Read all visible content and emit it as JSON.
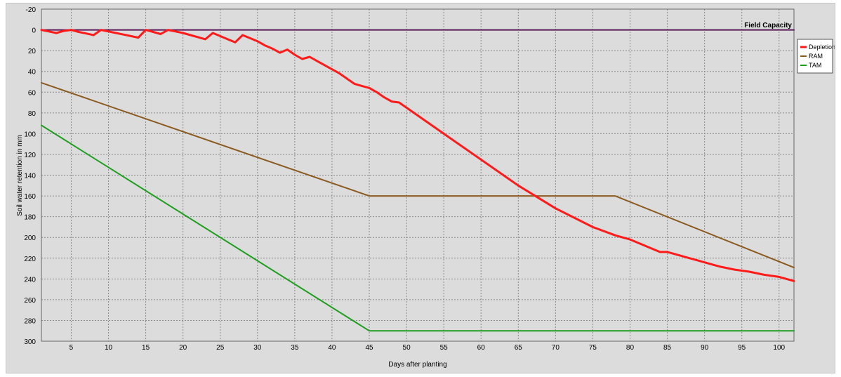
{
  "chart_data": {
    "type": "line",
    "xlabel": "Days after planting",
    "ylabel": "Soil water retention in mm",
    "xlim": [
      1,
      102
    ],
    "ylim": [
      -20,
      300
    ],
    "y_inverted": true,
    "grid": true,
    "x_ticks": [
      5,
      10,
      15,
      20,
      25,
      30,
      35,
      40,
      45,
      50,
      55,
      60,
      65,
      70,
      75,
      80,
      85,
      90,
      95,
      100
    ],
    "y_ticks": [
      -20,
      0,
      20,
      40,
      60,
      80,
      100,
      120,
      140,
      160,
      180,
      200,
      220,
      240,
      260,
      280,
      300
    ],
    "y_tick_labels": [
      "-20",
      "0",
      "20",
      "40",
      "60",
      "80",
      "100",
      "120",
      "140",
      "160",
      "180",
      "200",
      "220",
      "240",
      "260",
      "280",
      "300"
    ],
    "annotation": "Field Capacity",
    "legend_position": "right",
    "series": [
      {
        "name": "Depletion",
        "color": "#ff1a1a",
        "width": 3,
        "x": [
          1,
          2,
          3,
          4,
          5,
          6,
          7,
          8,
          9,
          10,
          11,
          12,
          13,
          14,
          15,
          16,
          17,
          18,
          19,
          20,
          21,
          22,
          23,
          24,
          25,
          26,
          27,
          28,
          29,
          30,
          31,
          32,
          33,
          34,
          35,
          36,
          37,
          38,
          39,
          40,
          41,
          42,
          43,
          44,
          45,
          46,
          47,
          48,
          49,
          50,
          55,
          60,
          65,
          70,
          75,
          78,
          80,
          84,
          85,
          88,
          89,
          90,
          92,
          94,
          95,
          96,
          98,
          99,
          100,
          102
        ],
        "y": [
          0,
          1.5,
          3,
          1,
          0,
          2,
          3.5,
          5,
          0,
          1.5,
          3,
          4.5,
          6,
          7.5,
          0,
          2,
          4,
          0,
          1.5,
          3,
          5,
          7,
          9,
          3,
          6,
          9,
          12,
          5,
          8,
          11,
          15,
          18,
          22,
          19,
          24,
          28,
          26,
          30,
          34,
          38,
          42,
          47,
          52,
          54,
          56,
          60,
          65,
          69,
          70,
          75,
          100,
          125,
          150,
          172,
          190,
          198,
          202,
          214,
          214,
          220,
          222,
          224,
          228,
          231,
          232,
          233,
          236,
          237,
          238,
          242
        ]
      },
      {
        "name": "RAM",
        "color": "#8b5a1f",
        "width": 2,
        "x": [
          1,
          45,
          78,
          102
        ],
        "y": [
          51,
          160,
          160,
          229
        ]
      },
      {
        "name": "TAM",
        "color": "#1e9e1e",
        "width": 2,
        "x": [
          1,
          45,
          102
        ],
        "y": [
          92,
          290,
          290
        ]
      },
      {
        "name": "Field Capacity",
        "color": "#5a1a5a",
        "width": 2,
        "x": [
          1,
          102
        ],
        "y": [
          0,
          0
        ]
      }
    ]
  }
}
